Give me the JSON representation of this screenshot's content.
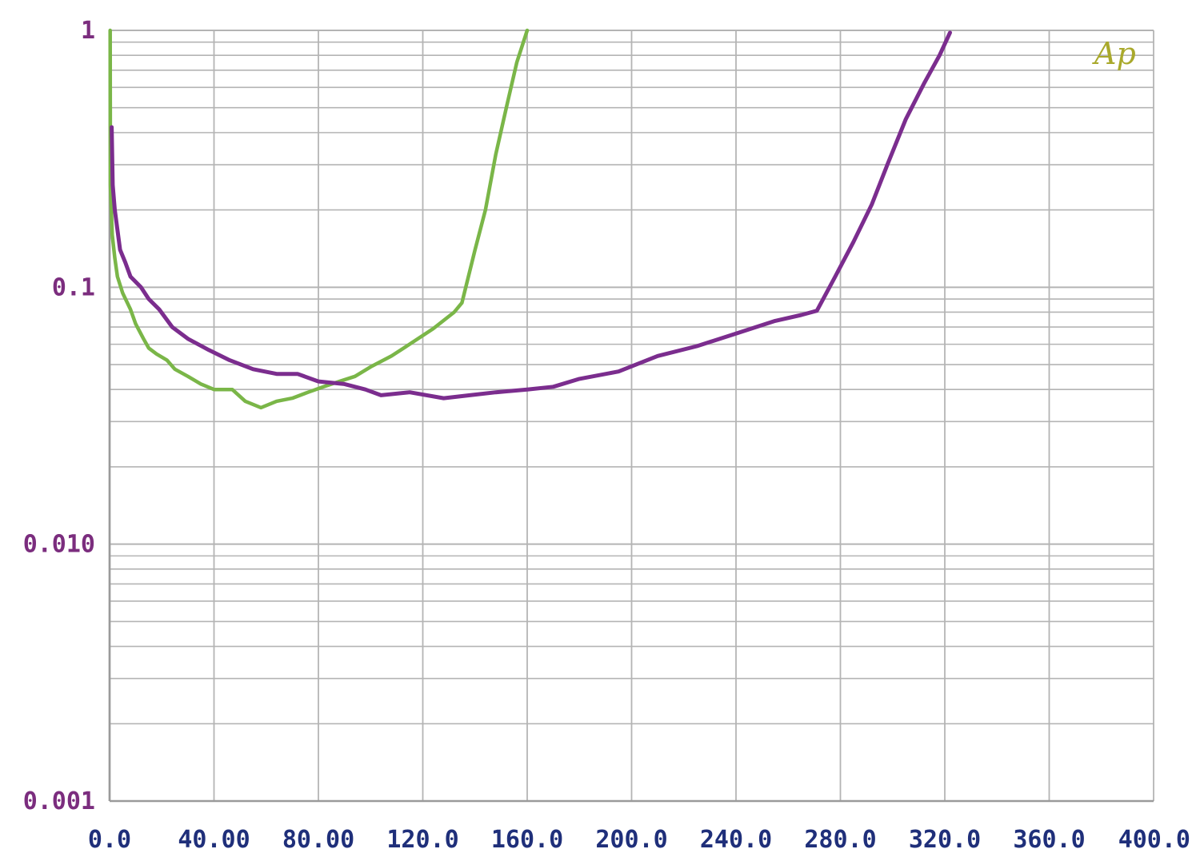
{
  "chart_data": {
    "type": "line",
    "title": "",
    "xlabel": "",
    "ylabel": "",
    "xlim": [
      0,
      400
    ],
    "ylim": [
      0.001,
      1
    ],
    "y_scale": "log",
    "grid": true,
    "x_ticks": [
      "0.0",
      "40.00",
      "80.00",
      "120.0",
      "160.0",
      "200.0",
      "240.0",
      "280.0",
      "320.0",
      "360.0",
      "400.0"
    ],
    "y_ticks": [
      {
        "value": 1,
        "label": "1"
      },
      {
        "value": 0.1,
        "label": "0.1"
      },
      {
        "value": 0.01,
        "label": "0.010"
      },
      {
        "value": 0.001,
        "label": "0.001"
      }
    ],
    "series": [
      {
        "color": "#7ab648",
        "points": [
          [
            0.2,
            1.0
          ],
          [
            0.3,
            0.25
          ],
          [
            1,
            0.16
          ],
          [
            2,
            0.13
          ],
          [
            3,
            0.11
          ],
          [
            5,
            0.095
          ],
          [
            8,
            0.082
          ],
          [
            10,
            0.072
          ],
          [
            13,
            0.063
          ],
          [
            15,
            0.058
          ],
          [
            18,
            0.055
          ],
          [
            22,
            0.052
          ],
          [
            25,
            0.048
          ],
          [
            30,
            0.045
          ],
          [
            35,
            0.042
          ],
          [
            40,
            0.04
          ],
          [
            47,
            0.04
          ],
          [
            52,
            0.036
          ],
          [
            58,
            0.034
          ],
          [
            64,
            0.036
          ],
          [
            70,
            0.037
          ],
          [
            76,
            0.039
          ],
          [
            82,
            0.041
          ],
          [
            88,
            0.043
          ],
          [
            94,
            0.045
          ],
          [
            100,
            0.049
          ],
          [
            108,
            0.054
          ],
          [
            116,
            0.061
          ],
          [
            124,
            0.069
          ],
          [
            132,
            0.08
          ],
          [
            135,
            0.087
          ],
          [
            140,
            0.14
          ],
          [
            144,
            0.2
          ],
          [
            148,
            0.33
          ],
          [
            152,
            0.5
          ],
          [
            156,
            0.75
          ],
          [
            160,
            1.0
          ]
        ]
      },
      {
        "color": "#7b2d8e",
        "points": [
          [
            0.8,
            0.42
          ],
          [
            1.2,
            0.25
          ],
          [
            2,
            0.2
          ],
          [
            4,
            0.14
          ],
          [
            6,
            0.125
          ],
          [
            8,
            0.11
          ],
          [
            12,
            0.1
          ],
          [
            15,
            0.09
          ],
          [
            19,
            0.082
          ],
          [
            24,
            0.07
          ],
          [
            30,
            0.063
          ],
          [
            38,
            0.057
          ],
          [
            46,
            0.052
          ],
          [
            55,
            0.048
          ],
          [
            64,
            0.046
          ],
          [
            72,
            0.046
          ],
          [
            80,
            0.043
          ],
          [
            90,
            0.042
          ],
          [
            98,
            0.04
          ],
          [
            104,
            0.038
          ],
          [
            115,
            0.039
          ],
          [
            128,
            0.037
          ],
          [
            138,
            0.038
          ],
          [
            148,
            0.039
          ],
          [
            160,
            0.04
          ],
          [
            170,
            0.041
          ],
          [
            180,
            0.044
          ],
          [
            195,
            0.047
          ],
          [
            210,
            0.054
          ],
          [
            225,
            0.059
          ],
          [
            240,
            0.066
          ],
          [
            255,
            0.074
          ],
          [
            265,
            0.078
          ],
          [
            271,
            0.081
          ],
          [
            278,
            0.11
          ],
          [
            285,
            0.15
          ],
          [
            292,
            0.21
          ],
          [
            298,
            0.3
          ],
          [
            305,
            0.45
          ],
          [
            312,
            0.62
          ],
          [
            318,
            0.8
          ],
          [
            322,
            0.98
          ]
        ]
      }
    ],
    "annotations": [
      {
        "text": "Ap",
        "color": "#a9a92c"
      }
    ]
  }
}
